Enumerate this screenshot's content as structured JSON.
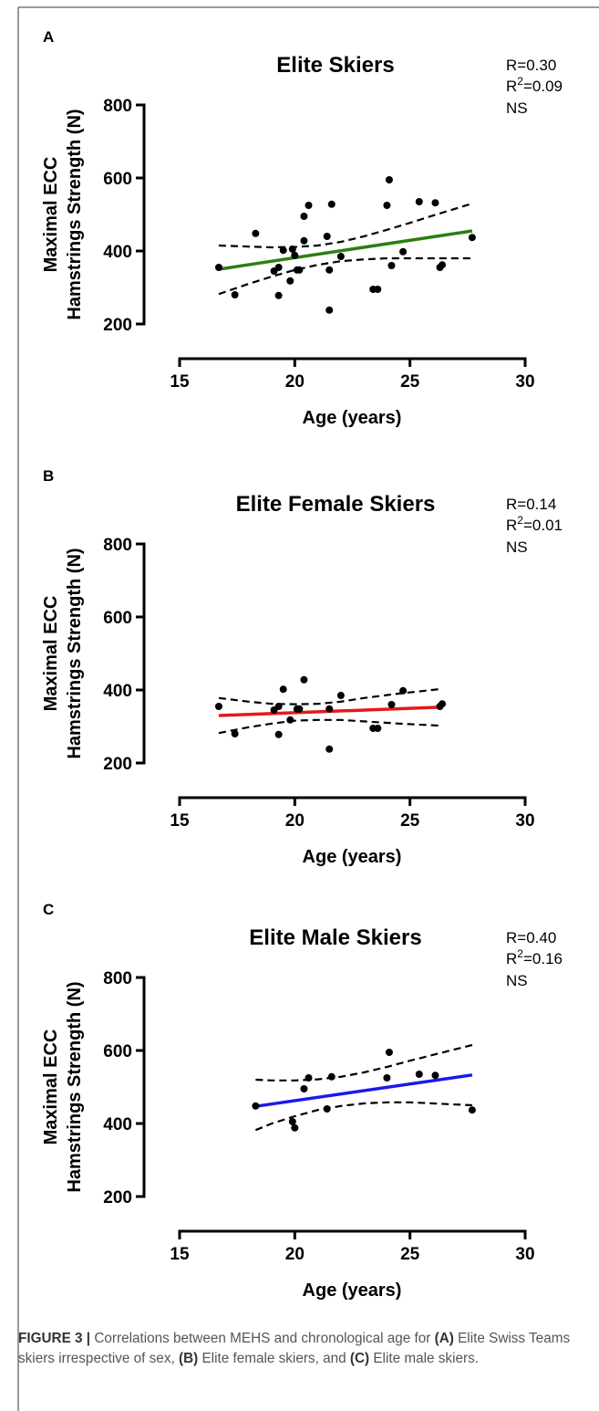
{
  "chart_data": [
    {
      "type": "scatter",
      "panel": "A",
      "title": "Elite Skiers",
      "stats": {
        "r": "R=0.30",
        "r2_base": "R",
        "r2_exp": "2",
        "r2_val": "=0.09",
        "sig": "NS"
      },
      "ylabel": [
        "Maximal ECC",
        "Hamstrings Strength (N)"
      ],
      "xlabel": "Age (years)",
      "xlim": [
        15,
        30
      ],
      "xticks": [
        15,
        20,
        25,
        30
      ],
      "ylim": [
        200,
        800
      ],
      "yticks": [
        200,
        400,
        600,
        800
      ],
      "series": [
        {
          "type": "scatter",
          "color": "#000000",
          "x": [
            16.7,
            17.4,
            18.3,
            19.1,
            19.3,
            19.3,
            19.5,
            19.8,
            19.9,
            20.0,
            20.1,
            20.2,
            20.4,
            20.4,
            20.6,
            21.4,
            21.5,
            21.5,
            21.6,
            22.0,
            23.4,
            23.6,
            24.0,
            24.1,
            24.2,
            24.7,
            25.4,
            26.1,
            26.3,
            26.4,
            27.7
          ],
          "values": [
            355,
            280,
            448,
            345,
            355,
            278,
            402,
            318,
            405,
            388,
            348,
            348,
            495,
            428,
            525,
            440,
            348,
            238,
            528,
            385,
            295,
            295,
            525,
            595,
            360,
            398,
            535,
            532,
            355,
            362,
            437
          ]
        },
        {
          "type": "line",
          "color": "#2e7d12",
          "x": [
            16.7,
            27.7
          ],
          "values": [
            350,
            455
          ]
        },
        {
          "type": "line",
          "dash": true,
          "color": "#000000",
          "x": [
            16.7,
            18,
            19,
            20,
            21,
            22,
            23,
            24,
            25,
            26,
            27.7
          ],
          "values": [
            415,
            412,
            410,
            411,
            415,
            425,
            440,
            458,
            477,
            497,
            530
          ]
        },
        {
          "type": "line",
          "dash": true,
          "color": "#000000",
          "x": [
            16.7,
            18,
            19,
            20,
            21,
            22,
            23,
            24,
            25,
            26,
            27.7
          ],
          "values": [
            282,
            310,
            330,
            348,
            362,
            372,
            377,
            380,
            380,
            380,
            380
          ]
        }
      ]
    },
    {
      "type": "scatter",
      "panel": "B",
      "title": "Elite Female Skiers",
      "stats": {
        "r": "R=0.14",
        "r2_base": "R",
        "r2_exp": "2",
        "r2_val": "=0.01",
        "sig": "NS"
      },
      "ylabel": [
        "Maximal ECC",
        "Hamstrings Strength (N)"
      ],
      "xlabel": "Age (years)",
      "xlim": [
        15,
        30
      ],
      "xticks": [
        15,
        20,
        25,
        30
      ],
      "ylim": [
        200,
        800
      ],
      "yticks": [
        200,
        400,
        600,
        800
      ],
      "series": [
        {
          "type": "scatter",
          "color": "#000000",
          "x": [
            16.7,
            17.4,
            19.1,
            19.3,
            19.3,
            19.5,
            19.8,
            20.1,
            20.2,
            20.4,
            21.5,
            21.5,
            22.0,
            23.4,
            23.6,
            24.2,
            24.7,
            26.3,
            26.4
          ],
          "values": [
            355,
            280,
            345,
            355,
            278,
            402,
            318,
            348,
            348,
            428,
            348,
            238,
            385,
            295,
            295,
            360,
            398,
            355,
            362
          ]
        },
        {
          "type": "line",
          "color": "#e3191c",
          "x": [
            16.7,
            26.4
          ],
          "values": [
            330,
            353
          ]
        },
        {
          "type": "line",
          "dash": true,
          "color": "#000000",
          "x": [
            16.7,
            18,
            19,
            20,
            21,
            22,
            23,
            24.5,
            26.4
          ],
          "values": [
            378,
            368,
            362,
            361,
            362,
            368,
            378,
            390,
            403
          ]
        },
        {
          "type": "line",
          "dash": true,
          "color": "#000000",
          "x": [
            16.7,
            18,
            19,
            20,
            21,
            22,
            23,
            24.5,
            26.4
          ],
          "values": [
            282,
            298,
            308,
            316,
            318,
            318,
            314,
            308,
            302
          ]
        }
      ]
    },
    {
      "type": "scatter",
      "panel": "C",
      "title": "Elite Male Skiers",
      "stats": {
        "r": "R=0.40",
        "r2_base": "R",
        "r2_exp": "2",
        "r2_val": "=0.16",
        "sig": "NS"
      },
      "ylabel": [
        "Maximal ECC",
        "Hamstrings Strength (N)"
      ],
      "xlabel": "Age (years)",
      "xlim": [
        15,
        30
      ],
      "xticks": [
        15,
        20,
        25,
        30
      ],
      "ylim": [
        200,
        800
      ],
      "yticks": [
        200,
        400,
        600,
        800
      ],
      "series": [
        {
          "type": "scatter",
          "color": "#000000",
          "x": [
            18.3,
            19.9,
            20.0,
            20.4,
            20.6,
            21.4,
            21.6,
            24.0,
            24.1,
            25.4,
            26.1,
            27.7
          ],
          "values": [
            448,
            405,
            388,
            495,
            525,
            440,
            528,
            525,
            595,
            535,
            532,
            437
          ]
        },
        {
          "type": "line",
          "color": "#1a1ae8",
          "x": [
            18.3,
            27.7
          ],
          "values": [
            447,
            533
          ]
        },
        {
          "type": "line",
          "dash": true,
          "color": "#000000",
          "x": [
            18.3,
            19,
            20,
            21,
            22,
            23,
            24,
            25,
            26,
            27.7
          ],
          "values": [
            520,
            518,
            518,
            521,
            528,
            540,
            555,
            572,
            588,
            615
          ]
        },
        {
          "type": "line",
          "dash": true,
          "color": "#000000",
          "x": [
            18.3,
            19,
            20,
            21,
            22,
            23,
            24,
            25,
            26,
            27.7
          ],
          "values": [
            382,
            400,
            420,
            437,
            448,
            455,
            458,
            458,
            455,
            450
          ]
        }
      ]
    }
  ],
  "caption": [
    {
      "text": "FIGURE 3 |",
      "bold": true
    },
    {
      "text": " Correlations between MEHS and chronological age for ",
      "bold": false
    },
    {
      "text": "(A)",
      "bold": true
    },
    {
      "text": " Elite Swiss Teams skiers irrespective of sex, ",
      "bold": false
    },
    {
      "text": "(B)",
      "bold": true
    },
    {
      "text": " Elite female skiers, and ",
      "bold": false
    },
    {
      "text": "(C)",
      "bold": true
    },
    {
      "text": " Elite male skiers.",
      "bold": false
    }
  ]
}
